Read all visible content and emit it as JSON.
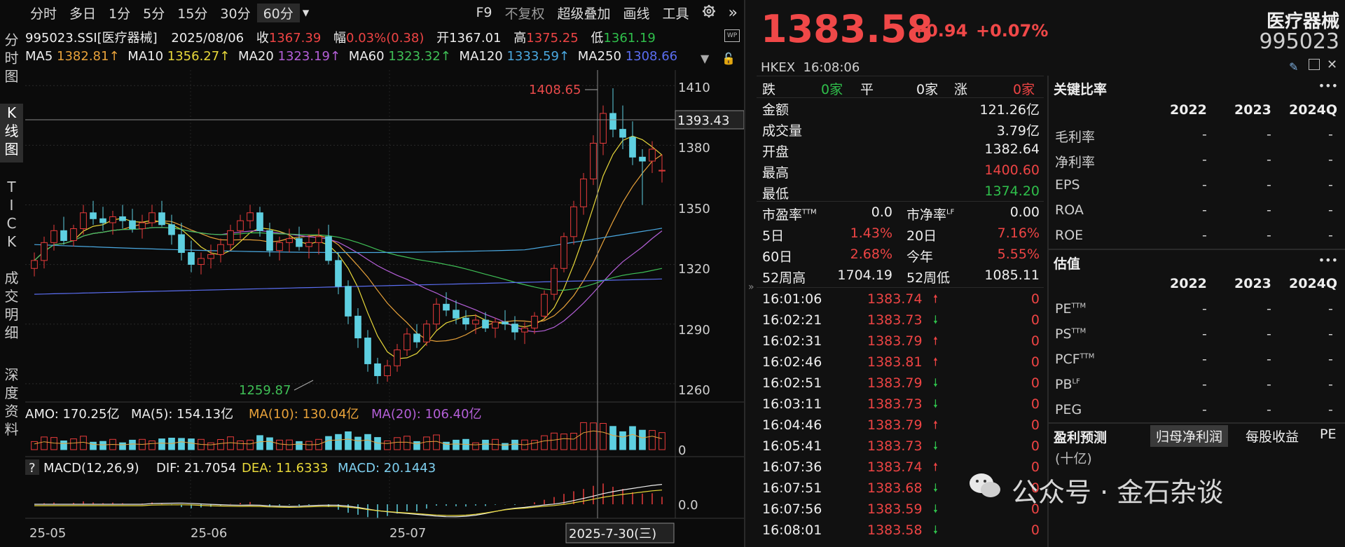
{
  "toolbar": {
    "periods": [
      "分时",
      "多日",
      "1分",
      "5分",
      "15分",
      "30分",
      "60分"
    ],
    "dropdown_caret": "▾",
    "tools": [
      "F9",
      "不复权",
      "超级叠加",
      "画线",
      "工具"
    ],
    "settings_icon": "gear-icon",
    "expand_icon": "double-chevron-right-icon"
  },
  "side_tabs": [
    {
      "label": "分\n时\n图",
      "active": false
    },
    {
      "label": "K\n线\n图",
      "active": true
    },
    {
      "label": "T\nI\nC\nK",
      "active": false
    },
    {
      "label": "成\n交\n明\n细",
      "active": false
    },
    {
      "label": "深\n度\n资\n料",
      "active": false
    }
  ],
  "chart_info": {
    "code": "995023.SSI[医疗器械]",
    "date": "2025/08/06",
    "close_label": "收",
    "close_value": "1367.39",
    "range_label": "幅",
    "range_value": "0.03%(0.38)",
    "open_label": "开",
    "open_value": "1367.01",
    "high_label": "高",
    "high_value": "1375.25",
    "low_label": "低",
    "low_value": "1361.19",
    "ma": [
      {
        "label": "MA5",
        "value": "1382.81↑"
      },
      {
        "label": "MA10",
        "value": "1356.27↑"
      },
      {
        "label": "MA20",
        "value": "1323.19↑"
      },
      {
        "label": "MA60",
        "value": "1323.32↑"
      },
      {
        "label": "MA120",
        "value": "1333.59↑"
      },
      {
        "label": "MA250",
        "value": "1308.66"
      }
    ],
    "amo": {
      "label": "AMO: 170.25亿",
      "ma5": "MA(5): 154.13亿",
      "ma10": "MA(10): 130.04亿",
      "ma20": "MA(20): 106.40亿"
    },
    "macd": {
      "help": "?",
      "label": "MACD(12,26,9)",
      "dif": "DIF: 21.7054",
      "dea": "DEA: 11.6333",
      "macd": "MACD: 20.1443"
    },
    "annot_high": "1408.65",
    "annot_low": "1259.87",
    "crosshair_price": "1393.43",
    "crosshair_date": "2025-7-30(三)",
    "y_ticks": [
      "1410",
      "1380",
      "1350",
      "1320",
      "1290",
      "1260"
    ],
    "vol_tick": "0",
    "macd_tick": "0.0",
    "x_ticks": [
      "25-05",
      "25-06",
      "25-07"
    ]
  },
  "chart_data": {
    "type": "candlestick",
    "ylim": [
      1255,
      1415
    ],
    "candles": [
      [
        1318,
        1326,
        1314,
        1322
      ],
      [
        1322,
        1334,
        1318,
        1331
      ],
      [
        1331,
        1340,
        1327,
        1337
      ],
      [
        1337,
        1344,
        1330,
        1332
      ],
      [
        1332,
        1340,
        1329,
        1338
      ],
      [
        1338,
        1350,
        1335,
        1346
      ],
      [
        1346,
        1352,
        1340,
        1343
      ],
      [
        1343,
        1349,
        1337,
        1341
      ],
      [
        1341,
        1347,
        1335,
        1344
      ],
      [
        1344,
        1350,
        1338,
        1342
      ],
      [
        1342,
        1348,
        1336,
        1338
      ],
      [
        1338,
        1345,
        1333,
        1341
      ],
      [
        1341,
        1350,
        1339,
        1346
      ],
      [
        1346,
        1352,
        1339,
        1340
      ],
      [
        1340,
        1345,
        1330,
        1335
      ],
      [
        1335,
        1341,
        1322,
        1326
      ],
      [
        1326,
        1332,
        1316,
        1320
      ],
      [
        1320,
        1326,
        1315,
        1323
      ],
      [
        1323,
        1330,
        1318,
        1325
      ],
      [
        1325,
        1333,
        1321,
        1330
      ],
      [
        1330,
        1340,
        1327,
        1337
      ],
      [
        1337,
        1345,
        1333,
        1342
      ],
      [
        1342,
        1350,
        1338,
        1346
      ],
      [
        1346,
        1349,
        1334,
        1337
      ],
      [
        1337,
        1341,
        1324,
        1327
      ],
      [
        1327,
        1334,
        1322,
        1331
      ],
      [
        1331,
        1338,
        1326,
        1333
      ],
      [
        1333,
        1339,
        1327,
        1329
      ],
      [
        1329,
        1335,
        1323,
        1331
      ],
      [
        1331,
        1338,
        1325,
        1334
      ],
      [
        1334,
        1340,
        1320,
        1322
      ],
      [
        1322,
        1326,
        1305,
        1309
      ],
      [
        1309,
        1312,
        1290,
        1294
      ],
      [
        1294,
        1298,
        1278,
        1283
      ],
      [
        1283,
        1287,
        1266,
        1270
      ],
      [
        1270,
        1273,
        1259.87,
        1264
      ],
      [
        1264,
        1272,
        1261,
        1269
      ],
      [
        1269,
        1280,
        1266,
        1277
      ],
      [
        1277,
        1288,
        1274,
        1285
      ],
      [
        1285,
        1290,
        1278,
        1281
      ],
      [
        1281,
        1292,
        1279,
        1290
      ],
      [
        1290,
        1303,
        1287,
        1300
      ],
      [
        1300,
        1306,
        1294,
        1297
      ],
      [
        1297,
        1302,
        1290,
        1293
      ],
      [
        1293,
        1297,
        1287,
        1290
      ],
      [
        1290,
        1295,
        1285,
        1292
      ],
      [
        1292,
        1296,
        1286,
        1288
      ],
      [
        1288,
        1293,
        1283,
        1291
      ],
      [
        1291,
        1297,
        1287,
        1290
      ],
      [
        1290,
        1294,
        1282,
        1286
      ],
      [
        1286,
        1291,
        1280,
        1288
      ],
      [
        1288,
        1296,
        1285,
        1294
      ],
      [
        1294,
        1307,
        1292,
        1305
      ],
      [
        1305,
        1320,
        1302,
        1318
      ],
      [
        1318,
        1336,
        1316,
        1334
      ],
      [
        1334,
        1352,
        1330,
        1349
      ],
      [
        1349,
        1366,
        1345,
        1363
      ],
      [
        1363,
        1385,
        1360,
        1381
      ],
      [
        1381,
        1400,
        1375,
        1396
      ],
      [
        1396,
        1408.65,
        1384,
        1388
      ],
      [
        1388,
        1400,
        1378,
        1384
      ],
      [
        1384,
        1392,
        1370,
        1374
      ],
      [
        1374,
        1378,
        1350,
        1372
      ],
      [
        1372,
        1382,
        1366,
        1378
      ],
      [
        1367.01,
        1375.25,
        1361.19,
        1367.39
      ]
    ],
    "colors": {
      "up": "#e83b3b",
      "down": "#5ecfe0",
      "bg": "#0b0b0b"
    }
  },
  "quote": {
    "price": "1383.58",
    "change": "+0.94",
    "pct": "+0.07%",
    "name": "医疗器械",
    "code": "995023",
    "market_time": "HKEX  16:08:06",
    "adv": {
      "down_label": "跌",
      "down_val": "0家",
      "flat_label": "平",
      "flat_val": "0家",
      "up_label": "涨",
      "up_val": "0家"
    },
    "fields": [
      {
        "label": "金额",
        "value": "121.26亿",
        "color": "white"
      },
      {
        "label": "成交量",
        "value": "3.79亿",
        "color": "white"
      },
      {
        "label": "开盘",
        "value": "1382.64",
        "color": "white"
      },
      {
        "label": "最高",
        "value": "1400.60",
        "color": "red"
      },
      {
        "label": "最低",
        "value": "1374.20",
        "color": "green"
      }
    ],
    "ratios": [
      {
        "l1": "市盈率",
        "s1": "TTM",
        "v1": "0.0",
        "c1": "white",
        "l2": "市净率",
        "s2": "LF",
        "v2": "0.00",
        "c2": "white"
      },
      {
        "l1": "5日",
        "s1": "",
        "v1": "1.43%",
        "c1": "red",
        "l2": "20日",
        "s2": "",
        "v2": "7.16%",
        "c2": "red"
      },
      {
        "l1": "60日",
        "s1": "",
        "v1": "2.68%",
        "c1": "red",
        "l2": "今年",
        "s2": "",
        "v2": "5.55%",
        "c2": "red"
      },
      {
        "l1": "52周高",
        "s1": "",
        "v1": "1704.19",
        "c1": "white",
        "l2": "52周低",
        "s2": "",
        "v2": "1085.11",
        "c2": "white"
      }
    ],
    "ticks": [
      {
        "t": "16:01:06",
        "p": "1383.74",
        "d": "up",
        "v": "0"
      },
      {
        "t": "16:02:21",
        "p": "1383.73",
        "d": "down",
        "v": "0"
      },
      {
        "t": "16:02:31",
        "p": "1383.79",
        "d": "up",
        "v": "0"
      },
      {
        "t": "16:02:46",
        "p": "1383.81",
        "d": "up",
        "v": "0"
      },
      {
        "t": "16:02:51",
        "p": "1383.79",
        "d": "down",
        "v": "0"
      },
      {
        "t": "16:03:11",
        "p": "1383.73",
        "d": "down",
        "v": "0"
      },
      {
        "t": "16:04:46",
        "p": "1383.79",
        "d": "up",
        "v": "0"
      },
      {
        "t": "16:05:41",
        "p": "1383.73",
        "d": "down",
        "v": "0"
      },
      {
        "t": "16:07:36",
        "p": "1383.74",
        "d": "up",
        "v": "0"
      },
      {
        "t": "16:07:51",
        "p": "1383.68",
        "d": "down",
        "v": "0"
      },
      {
        "t": "16:07:56",
        "p": "1383.59",
        "d": "down",
        "v": "0"
      },
      {
        "t": "16:08:01",
        "p": "1383.58",
        "d": "down",
        "v": "0"
      }
    ]
  },
  "key_ratios": {
    "title": "关键比率",
    "more": "•••",
    "years": [
      "2022",
      "2023",
      "2024Q"
    ],
    "rows": [
      {
        "label": "毛利率",
        "sup": "",
        "vals": [
          "-",
          "-",
          "-"
        ]
      },
      {
        "label": "净利率",
        "sup": "",
        "vals": [
          "-",
          "-",
          "-"
        ]
      },
      {
        "label": "EPS",
        "sup": "",
        "vals": [
          "-",
          "-",
          "-"
        ]
      },
      {
        "label": "ROA",
        "sup": "",
        "vals": [
          "-",
          "-",
          "-"
        ]
      },
      {
        "label": "ROE",
        "sup": "",
        "vals": [
          "-",
          "-",
          "-"
        ]
      }
    ]
  },
  "valuation": {
    "title": "估值",
    "more": "•••",
    "years": [
      "2022",
      "2023",
      "2024Q"
    ],
    "rows": [
      {
        "label": "PE",
        "sup": "TTM",
        "vals": [
          "-",
          "-",
          "-"
        ]
      },
      {
        "label": "PS",
        "sup": "TTM",
        "vals": [
          "-",
          "-",
          "-"
        ]
      },
      {
        "label": "PCF",
        "sup": "TTM",
        "vals": [
          "-",
          "-",
          "-"
        ]
      },
      {
        "label": "PB",
        "sup": "LF",
        "vals": [
          "-",
          "-",
          "-"
        ]
      },
      {
        "label": "PEG",
        "sup": "",
        "vals": [
          "-",
          "-",
          "-"
        ]
      }
    ]
  },
  "forecast": {
    "title": "盈利预测",
    "tabs": [
      "归母净利润",
      "每股收益",
      "PE"
    ],
    "unit": "(十亿)"
  },
  "watermark": "公众号 · 金石杂谈"
}
